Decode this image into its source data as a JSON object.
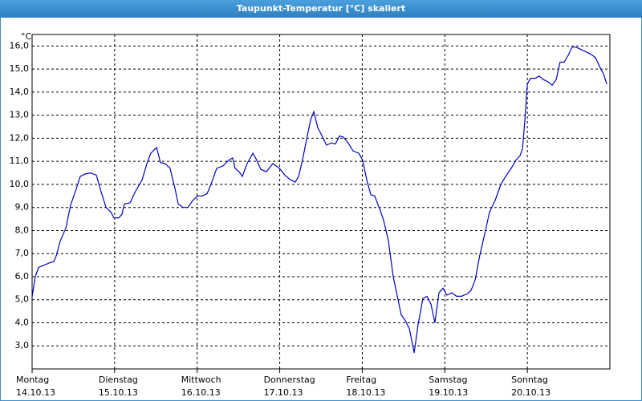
{
  "chart_data": {
    "type": "line",
    "title": "Taupunkt-Temperatur [°C] skaliert",
    "y_unit": "°C",
    "xlim": [
      0,
      168
    ],
    "xticks": [
      {
        "value": 0,
        "label": "Montag"
      },
      {
        "value": 24,
        "label": "Dienstag"
      },
      {
        "value": 48,
        "label": "Mittwoch"
      },
      {
        "value": 72,
        "label": "Donnerstag"
      },
      {
        "value": 96,
        "label": "Freitag"
      },
      {
        "value": 120,
        "label": "Samstag"
      },
      {
        "value": 144,
        "label": "Sonntag"
      }
    ],
    "xtick_dates": [
      "14.10.13",
      "15.10.13",
      "16.10.13",
      "17.10.13",
      "18.10.13",
      "19.10.13",
      "20.10.13"
    ],
    "ylim": [
      2,
      16.5
    ],
    "yticks": [
      {
        "value": 3,
        "label": "3,0"
      },
      {
        "value": 4,
        "label": "4,0"
      },
      {
        "value": 5,
        "label": "5,0"
      },
      {
        "value": 6,
        "label": "6,0"
      },
      {
        "value": 7,
        "label": "7,0"
      },
      {
        "value": 8,
        "label": "8,0"
      },
      {
        "value": 9,
        "label": "9,0"
      },
      {
        "value": 10,
        "label": "10,0"
      },
      {
        "value": 11,
        "label": "11,0"
      },
      {
        "value": 12,
        "label": "12,0"
      },
      {
        "value": 13,
        "label": "13,0"
      },
      {
        "value": 14,
        "label": "14,0"
      },
      {
        "value": 15,
        "label": "15,0"
      },
      {
        "value": 16,
        "label": "16,0"
      }
    ],
    "grid": true,
    "x": [
      0,
      0.9,
      1.9,
      3.5,
      5.1,
      6.3,
      7.0,
      8.2,
      9.8,
      11.2,
      12.8,
      14.0,
      15.4,
      17.0,
      18.7,
      19.8,
      21.5,
      22.9,
      23.8,
      25.2,
      26.1,
      26.8,
      28.5,
      29.9,
      32.0,
      33.4,
      34.5,
      36.2,
      37.3,
      38.7,
      40.1,
      41.5,
      42.5,
      43.9,
      45.3,
      46.7,
      48.1,
      49.5,
      50.9,
      52.0,
      53.7,
      55.5,
      57.2,
      58.3,
      59.0,
      60.2,
      61.1,
      62.5,
      64.2,
      65.3,
      66.5,
      68.1,
      70.0,
      71.9,
      73.5,
      75.1,
      76.5,
      77.5,
      78.6,
      80.0,
      81.0,
      81.9,
      83.1,
      84.5,
      85.6,
      87.0,
      88.2,
      89.4,
      90.5,
      91.9,
      93.3,
      95.0,
      96.1,
      97.3,
      98.5,
      99.6,
      101.0,
      102.2,
      103.6,
      105.0,
      106.2,
      107.3,
      108.5,
      109.7,
      111.1,
      112.2,
      113.6,
      114.8,
      116.0,
      117.1,
      118.3,
      119.5,
      120.6,
      122.0,
      123.4,
      124.8,
      126.5,
      127.6,
      128.8,
      130.2,
      131.6,
      133.0,
      134.6,
      136.3,
      137.7,
      139.3,
      140.7,
      141.9,
      142.6,
      143.3,
      144.0,
      144.9,
      146.3,
      147.4,
      148.6,
      150.0,
      151.2,
      152.4,
      153.5,
      154.7,
      155.9,
      157.0,
      158.2,
      159.6,
      161.0,
      162.4,
      163.8,
      165.2,
      166.1,
      167.1
    ],
    "series": [
      {
        "color": "#0000c0",
        "values": [
          5.13,
          6.0,
          6.4,
          6.5,
          6.6,
          6.65,
          6.9,
          7.55,
          8.1,
          9.1,
          9.8,
          10.35,
          10.45,
          10.5,
          10.4,
          9.8,
          9.0,
          8.8,
          8.55,
          8.55,
          8.7,
          9.15,
          9.2,
          9.65,
          10.2,
          10.9,
          11.35,
          11.6,
          10.95,
          10.9,
          10.7,
          9.85,
          9.15,
          9.0,
          9.0,
          9.3,
          9.5,
          9.5,
          9.6,
          10.0,
          10.7,
          10.8,
          11.05,
          11.15,
          10.7,
          10.55,
          10.35,
          10.9,
          11.35,
          11.05,
          10.65,
          10.55,
          10.9,
          10.7,
          10.4,
          10.2,
          10.1,
          10.35,
          11.05,
          12.1,
          12.8,
          13.15,
          12.45,
          12.05,
          11.7,
          11.8,
          11.75,
          12.1,
          12.05,
          11.8,
          11.45,
          11.35,
          11.05,
          10.2,
          9.55,
          9.5,
          8.95,
          8.45,
          7.55,
          6.0,
          5.15,
          4.35,
          4.1,
          3.75,
          2.7,
          3.9,
          5.05,
          5.15,
          4.8,
          4.0,
          5.3,
          5.5,
          5.2,
          5.3,
          5.15,
          5.15,
          5.25,
          5.4,
          5.85,
          6.95,
          7.85,
          8.8,
          9.3,
          10.0,
          10.35,
          10.7,
          11.05,
          11.25,
          11.55,
          12.8,
          14.35,
          14.6,
          14.6,
          14.7,
          14.55,
          14.45,
          14.3,
          14.55,
          15.3,
          15.3,
          15.6,
          15.95,
          15.95,
          15.85,
          15.75,
          15.65,
          15.5,
          15.05,
          14.8,
          14.35
        ]
      }
    ]
  }
}
